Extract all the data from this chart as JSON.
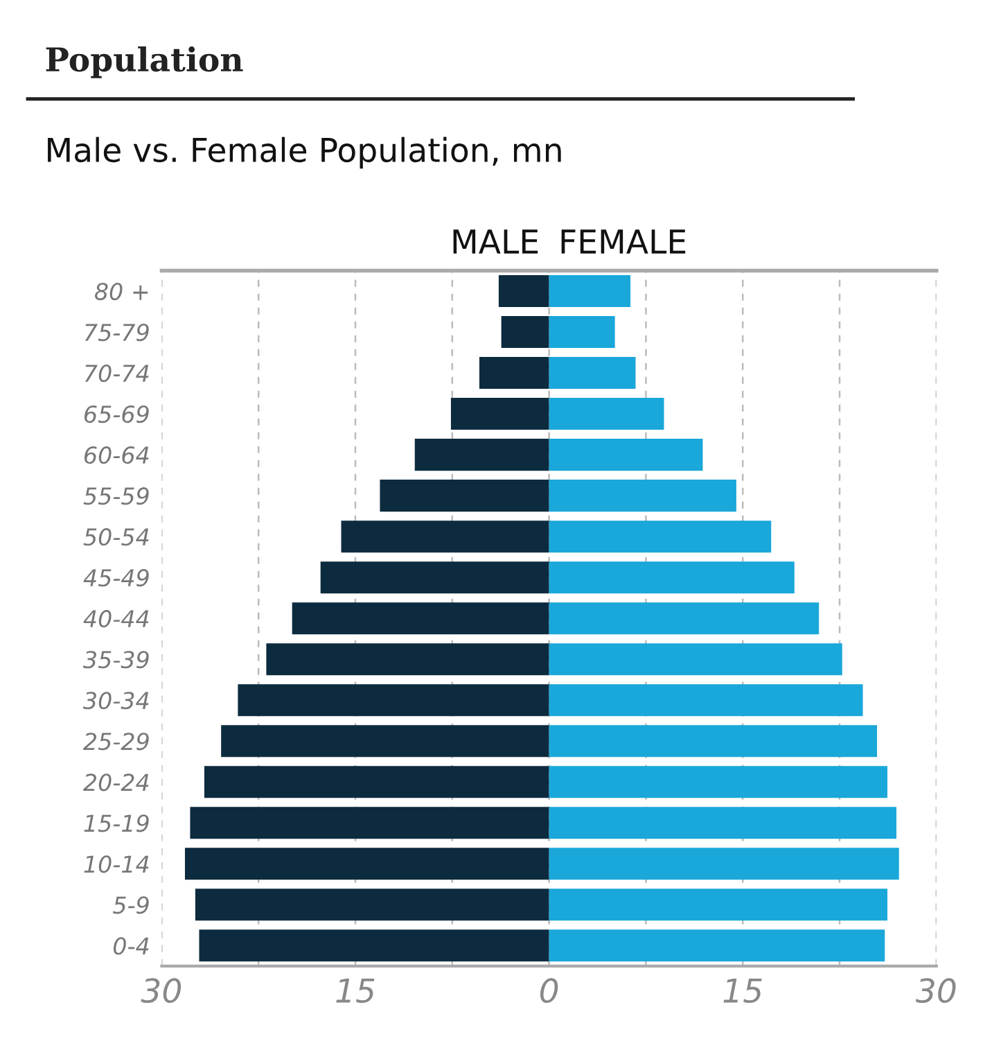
{
  "chart_data": {
    "type": "bar",
    "orientation": "horizontal",
    "title": "Population",
    "subtitle": "Male vs. Female Population, mn",
    "categories": [
      "80 +",
      "75-79",
      "70-74",
      "65-69",
      "60-64",
      "55-59",
      "50-54",
      "45-49",
      "40-44",
      "35-39",
      "30-34",
      "25-29",
      "20-24",
      "15-19",
      "10-14",
      "5-9",
      "0-4"
    ],
    "series": [
      {
        "name": "MALE",
        "color": "#0d2b3e",
        "values": [
          -3.9,
          -3.7,
          -5.4,
          -7.6,
          -10.4,
          -13.1,
          -16.1,
          -17.7,
          -19.9,
          -21.9,
          -24.1,
          -25.4,
          -26.7,
          -27.8,
          -28.2,
          -27.4,
          -27.1
        ]
      },
      {
        "name": "FEMALE",
        "color": "#1aa7d9",
        "values": [
          6.3,
          5.1,
          6.7,
          8.9,
          11.9,
          14.5,
          17.2,
          19.0,
          20.9,
          22.7,
          24.3,
          25.4,
          26.2,
          26.9,
          27.1,
          26.2,
          26.0
        ]
      }
    ],
    "xlim": [
      -30,
      30
    ],
    "xticks": [
      {
        "value": -30,
        "label": "30"
      },
      {
        "value": -22.5,
        "label": null
      },
      {
        "value": -15,
        "label": "15"
      },
      {
        "value": -7.5,
        "label": null
      },
      0,
      {
        "value": 7.5,
        "label": null
      },
      15,
      {
        "value": 22.5,
        "label": null
      },
      30
    ],
    "grid": "x",
    "legend": "top",
    "stacked": true
  }
}
